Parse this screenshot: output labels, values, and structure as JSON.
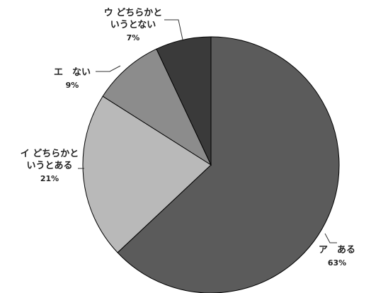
{
  "chart_data": {
    "type": "pie",
    "start_angle_deg": 0,
    "direction": "clockwise",
    "slices": [
      {
        "key": "a",
        "label_lines": [
          "ア　ある"
        ],
        "percent_label": "63%",
        "value": 63,
        "color": "#5b5b5b"
      },
      {
        "key": "i",
        "label_lines": [
          "イ どちらかと",
          "いうとある"
        ],
        "percent_label": "21%",
        "value": 21,
        "color": "#b9b9b9"
      },
      {
        "key": "e",
        "label_lines": [
          "エ　ない"
        ],
        "percent_label": "9%",
        "value": 9,
        "color": "#8c8c8c"
      },
      {
        "key": "u",
        "label_lines": [
          "ウ どちらかと",
          "いうとない"
        ],
        "percent_label": "7%",
        "value": 7,
        "color": "#3a3a3a"
      }
    ]
  }
}
